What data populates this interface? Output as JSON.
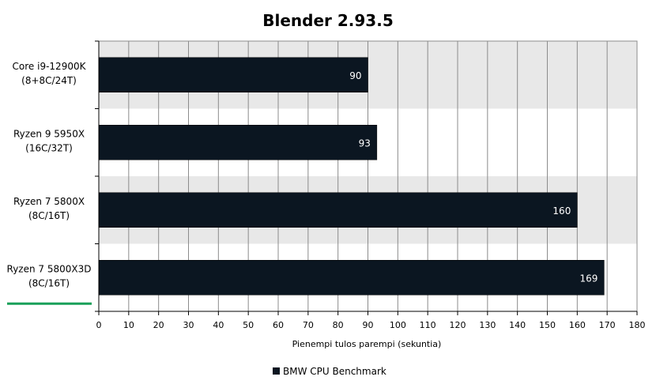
{
  "chart_data": {
    "type": "bar",
    "orientation": "horizontal",
    "title": "Blender 2.93.5",
    "xlabel": "Pienempi tulos parempi (sekuntia)",
    "categories": [
      [
        "Core i9-12900K",
        "(8+8C/24T)"
      ],
      [
        "Ryzen 9 5950X",
        "(16C/32T)"
      ],
      [
        "Ryzen 7 5800X",
        "(8C/16T)"
      ],
      [
        "Ryzen 7 5800X3D",
        "(8C/16T)"
      ]
    ],
    "series": [
      {
        "name": "BMW CPU Benchmark",
        "values": [
          90,
          93,
          160,
          169
        ],
        "color": "#0b1621"
      }
    ],
    "xlim": [
      0,
      180
    ],
    "xticks": [
      0,
      10,
      20,
      30,
      40,
      50,
      60,
      70,
      80,
      90,
      100,
      110,
      120,
      130,
      140,
      150,
      160,
      170,
      180
    ],
    "highlight_category": "Ryzen 7 5800X3D",
    "highlight_color": "#1aa05a",
    "legend_position": "bottom",
    "grid": "vertical",
    "band_colors": [
      "#e8e8e8",
      "#ffffff"
    ]
  }
}
